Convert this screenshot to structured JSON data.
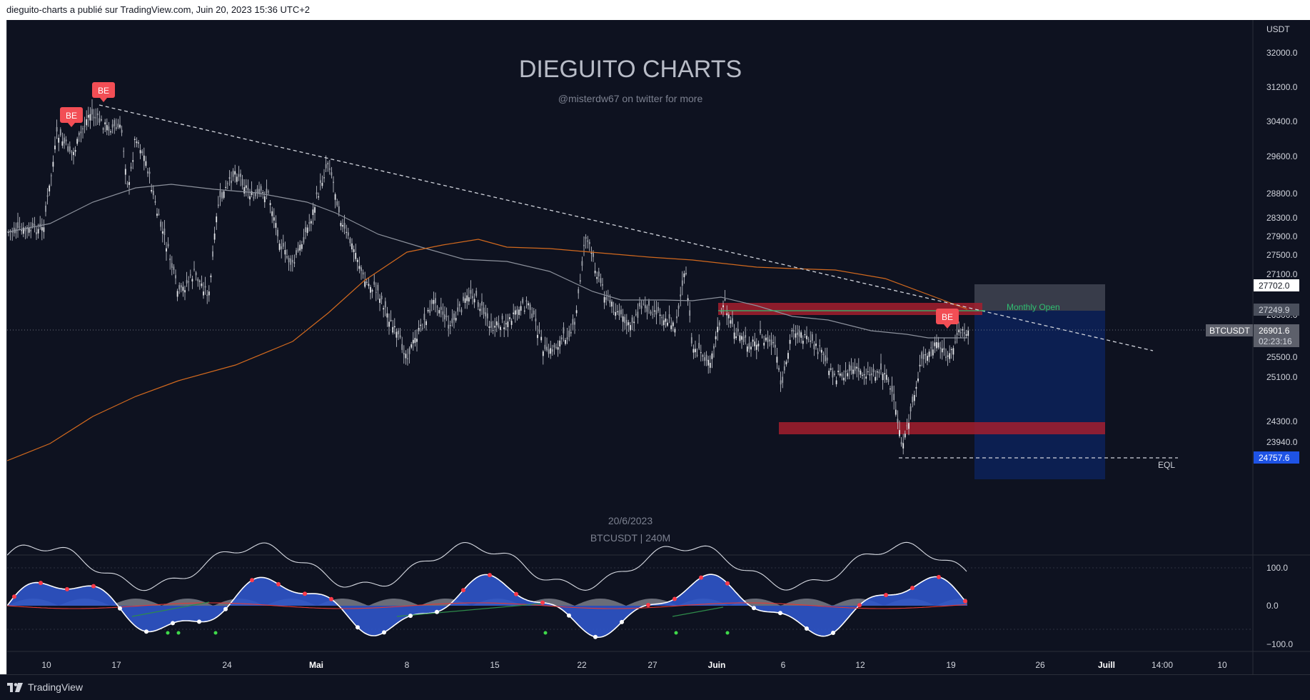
{
  "header": {
    "publisher_line": "dieguito-charts a publié sur TradingView.com, Juin 20, 2023 15:36 UTC+2"
  },
  "footer": {
    "logo_text": "TradingView"
  },
  "watermark": {
    "title": "DIEGUITO CHARTS",
    "subtitle": "@misterdw67 on twitter for more",
    "date": "20/6/2023",
    "symbol_line": "BTCUSDT | 240M"
  },
  "price_axis": {
    "currency": "USDT",
    "ticks": [
      "32000.0",
      "31200.0",
      "30400.0",
      "29600.0",
      "28800.0",
      "28300.0",
      "27900.0",
      "27500.0",
      "27100.0",
      "26300.0",
      "25900.0",
      "25500.0",
      "25100.0",
      "24300.0",
      "23940.0",
      "23590.0"
    ],
    "labels": {
      "range_top": "27702.0",
      "monthly_open": "27249.9",
      "symbol": "BTCUSDT",
      "last_price": "26901.6",
      "countdown": "02:23:16",
      "range_low": "24757.6"
    }
  },
  "osc_axis": {
    "ticks": [
      "100.0",
      "0.0",
      "−100.0"
    ]
  },
  "time_axis": {
    "ticks": [
      "10",
      "17",
      "24",
      "Mai",
      "8",
      "15",
      "22",
      "27",
      "Juin",
      "6",
      "12",
      "19",
      "26",
      "Juill",
      "14:00",
      "10"
    ]
  },
  "annotations": {
    "be_markers": [
      "BE",
      "BE",
      "BE"
    ],
    "monthly_open_label": "Monthly Open",
    "eql_label": "EQL"
  },
  "colors": {
    "background": "#0e1220",
    "candle": "#e6e8ec",
    "ma_gray": "#8c919c",
    "ma_orange": "#d2691e",
    "supply_zone": "#a31f2e",
    "range_box": "#0c2157",
    "be_badge": "#f24e55",
    "monthly_open": "#2fbf71",
    "osc_blue": "#2f55c9"
  },
  "chart_data": {
    "type": "candlestick",
    "symbol": "BTCUSDT",
    "timeframe": "240M",
    "currency": "USDT",
    "ylim": [
      23450,
      32450
    ],
    "x": [
      "2023-04-07",
      "2023-04-10",
      "2023-04-14",
      "2023-04-17",
      "2023-04-20",
      "2023-04-24",
      "2023-04-27",
      "2023-05-01",
      "2023-05-04",
      "2023-05-08",
      "2023-05-11",
      "2023-05-15",
      "2023-05-18",
      "2023-05-22",
      "2023-05-25",
      "2023-05-28",
      "2023-05-31",
      "2023-06-03",
      "2023-06-06",
      "2023-06-08",
      "2023-06-10",
      "2023-06-12",
      "2023-06-15",
      "2023-06-17",
      "2023-06-20"
    ],
    "close": [
      27900,
      28900,
      30400,
      30000,
      28200,
      27300,
      29300,
      28700,
      29000,
      27800,
      26800,
      27000,
      26900,
      26800,
      26500,
      28000,
      27000,
      27150,
      25700,
      26600,
      25800,
      26000,
      25100,
      26400,
      26901.6
    ],
    "osc": {
      "ylim": [
        -100,
        100
      ],
      "ticks": [
        100,
        0,
        -100
      ]
    },
    "levels": [
      {
        "label": "Monthly Open",
        "value": 27249.9
      },
      {
        "label": "EQL",
        "value": 24757.6
      }
    ],
    "markers": [
      "BE",
      "BE",
      "BE"
    ]
  }
}
